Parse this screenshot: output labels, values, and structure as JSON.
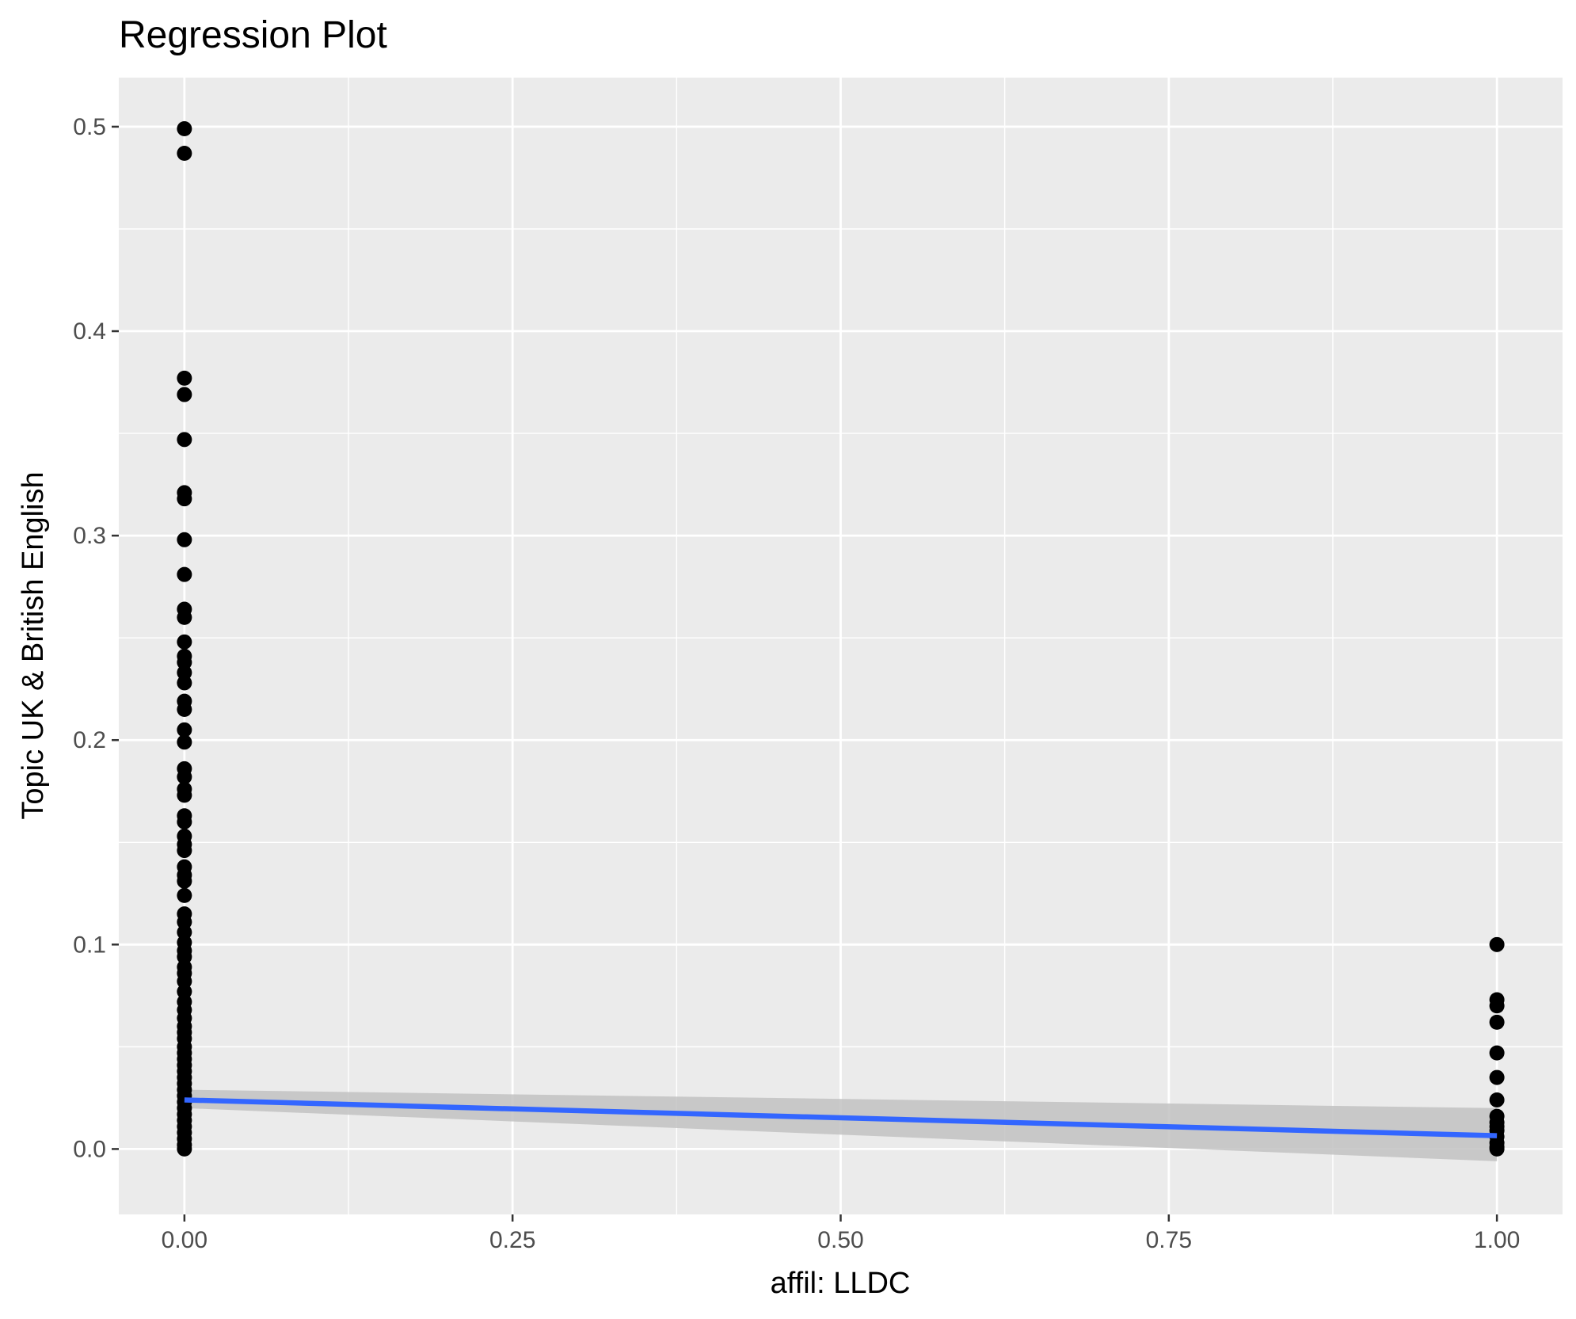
{
  "chart_data": {
    "type": "scatter",
    "title": "Regression Plot",
    "xlabel": "affil: LLDC",
    "ylabel": "Topic UK & British English",
    "xlim": [
      -0.05,
      1.05
    ],
    "ylim": [
      -0.032,
      0.524
    ],
    "x_ticks": [
      "0.00",
      "0.25",
      "0.50",
      "0.75",
      "1.00"
    ],
    "y_ticks": [
      "0.0",
      "0.1",
      "0.2",
      "0.3",
      "0.4",
      "0.5"
    ],
    "grid": true,
    "legend": "none",
    "colors": {
      "panel_background": "#ebebeb",
      "grid": "#ffffff",
      "points": "#000000",
      "fit_line": "#3366ff",
      "confidence_band": "#c2c2c2"
    },
    "series": [
      {
        "x": 0,
        "y": [
          0.499,
          0.487,
          0.377,
          0.369,
          0.347,
          0.321,
          0.318,
          0.298,
          0.281,
          0.264,
          0.26,
          0.248,
          0.241,
          0.238,
          0.233,
          0.228,
          0.219,
          0.215,
          0.205,
          0.199,
          0.186,
          0.182,
          0.176,
          0.173,
          0.163,
          0.16,
          0.153,
          0.149,
          0.146,
          0.138,
          0.134,
          0.131,
          0.124,
          0.115,
          0.111,
          0.106,
          0.101,
          0.097,
          0.094,
          0.089,
          0.086,
          0.082,
          0.077,
          0.072,
          0.068,
          0.064,
          0.06,
          0.057,
          0.054,
          0.05,
          0.047,
          0.044,
          0.041,
          0.038,
          0.035,
          0.032,
          0.029,
          0.026,
          0.023,
          0.02,
          0.017,
          0.014,
          0.011,
          0.008,
          0.005,
          0.002,
          0.0
        ]
      },
      {
        "x": 1,
        "y": [
          0.1,
          0.073,
          0.07,
          0.062,
          0.047,
          0.035,
          0.024,
          0.016,
          0.013,
          0.011,
          0.009,
          0.006,
          0.003,
          0.001,
          0.0
        ]
      }
    ],
    "regression": {
      "x": [
        0,
        1
      ],
      "y": [
        0.024,
        0.0065
      ],
      "ci_lower": [
        0.02,
        -0.006
      ],
      "ci_upper": [
        0.029,
        0.02
      ]
    }
  }
}
